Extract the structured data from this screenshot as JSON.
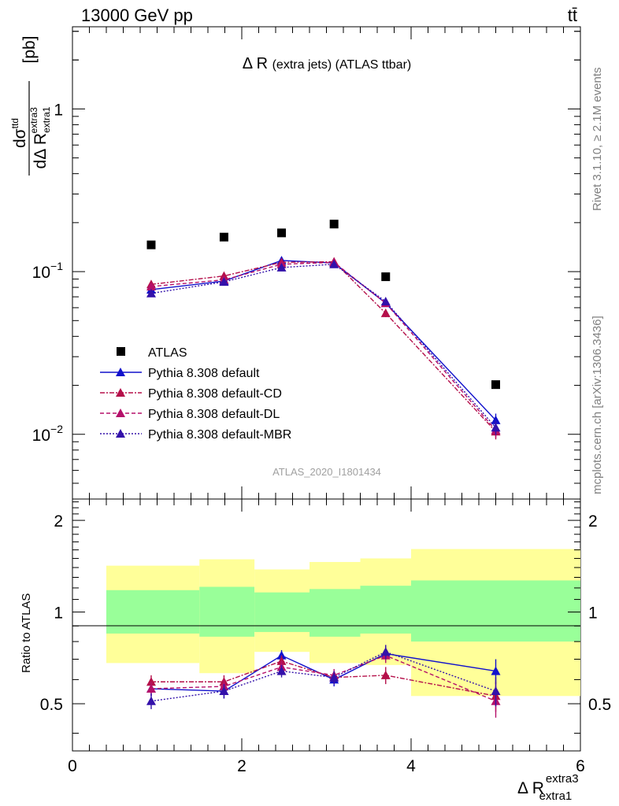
{
  "header": {
    "process": "13000 GeV pp",
    "final_state": "tt̄",
    "inner_title": "Δ R",
    "inner_title_sub": "(extra jets) (ATLAS ttbar)",
    "analysis_id": "ATLAS_2020_I1801434",
    "rivet_label": "Rivet 3.1.10, ≥ 2.1M events",
    "mcplots_label": "mcplots.cern.ch [arXiv:1306.3436]"
  },
  "axes": {
    "main_ylabel_num": "dσ",
    "main_ylabel_num_sup": "ttd",
    "main_ylabel_den": "dΔ R",
    "main_ylabel_den_sub": "extra1",
    "main_ylabel_den_sup": "extra3",
    "main_ylabel_unit": "[pb]",
    "ratio_ylabel": "Ratio to ATLAS",
    "xlabel": "Δ R",
    "xlabel_sup": "extra3",
    "xlabel_sub": "extra1",
    "main_ticks": [
      {
        "value": 1,
        "label": "1",
        "sup": ""
      },
      {
        "value": 0.1,
        "label": "10",
        "sup": "−1"
      },
      {
        "value": 0.01,
        "label": "10",
        "sup": "−2"
      }
    ],
    "ratio_ticks_left": [
      "2",
      "1",
      "0.5"
    ],
    "ratio_ticks_right": [
      "2",
      "1",
      "0.5"
    ],
    "x_ticks": [
      "0",
      "2",
      "4",
      "6"
    ]
  },
  "chart_data": {
    "type": "line",
    "xlim": [
      0,
      6
    ],
    "ylim_main": [
      0.004,
      3.2
    ],
    "yscale_main": "log",
    "ylim_ratio": [
      0.35,
      2.35
    ],
    "yscale_ratio": "log",
    "bins": [
      [
        0.4,
        1.5
      ],
      [
        1.5,
        2.15
      ],
      [
        2.15,
        2.8
      ],
      [
        2.8,
        3.4
      ],
      [
        3.4,
        4.0
      ],
      [
        4.0,
        6.0
      ]
    ],
    "x": [
      0.93,
      1.79,
      2.47,
      3.09,
      3.7,
      5.0
    ],
    "band_inner": [
      [
        0.85,
        1.18
      ],
      [
        0.83,
        1.21
      ],
      [
        0.86,
        1.16
      ],
      [
        0.83,
        1.19
      ],
      [
        0.85,
        1.22
      ],
      [
        0.8,
        1.27
      ]
    ],
    "band_outer": [
      [
        0.68,
        1.42
      ],
      [
        0.63,
        1.49
      ],
      [
        0.74,
        1.38
      ],
      [
        0.68,
        1.46
      ],
      [
        0.67,
        1.5
      ],
      [
        0.53,
        1.61
      ]
    ],
    "legend": [
      {
        "name": "ATLAS",
        "color": "#000000",
        "marker": "square",
        "dash": ""
      },
      {
        "name": "Pythia 8.308 default",
        "color": "#1111cc",
        "marker": "triangle",
        "dash": ""
      },
      {
        "name": "Pythia 8.308 default-CD",
        "color": "#b5104a",
        "marker": "triangle",
        "dash": "6,2,2,2"
      },
      {
        "name": "Pythia 8.308 default-DL",
        "color": "#b5106a",
        "marker": "triangle",
        "dash": "5,3"
      },
      {
        "name": "Pythia 8.308 default-MBR",
        "color": "#3311aa",
        "marker": "triangle",
        "dash": "2,2"
      }
    ],
    "data_values": [
      0.146,
      0.163,
      0.173,
      0.196,
      0.093,
      0.0202
    ],
    "series": [
      {
        "name": "Pythia 8.308 default",
        "values": [
          0.0775,
          0.0875,
          0.117,
          0.113,
          0.064,
          0.0122
        ],
        "errors": [
          0.003,
          0.003,
          0.004,
          0.004,
          0.003,
          0.0012
        ],
        "ratio": [
          0.56,
          0.55,
          0.72,
          0.6,
          0.73,
          0.64
        ],
        "ratio_err": [
          0.03,
          0.03,
          0.03,
          0.03,
          0.04,
          0.06
        ]
      },
      {
        "name": "Pythia 8.308 default-CD",
        "values": [
          0.0835,
          0.094,
          0.114,
          0.115,
          0.0555,
          0.0104
        ],
        "errors": [
          0.003,
          0.003,
          0.004,
          0.004,
          0.003,
          0.0011
        ],
        "ratio": [
          0.59,
          0.59,
          0.69,
          0.61,
          0.62,
          0.53
        ],
        "ratio_err": [
          0.03,
          0.03,
          0.03,
          0.03,
          0.04,
          0.06
        ]
      },
      {
        "name": "Pythia 8.308 default-DL",
        "values": [
          0.081,
          0.089,
          0.111,
          0.114,
          0.064,
          0.0106
        ],
        "errors": [
          0.003,
          0.003,
          0.004,
          0.004,
          0.003,
          0.0011
        ],
        "ratio": [
          0.56,
          0.57,
          0.66,
          0.62,
          0.72,
          0.51
        ],
        "ratio_err": [
          0.03,
          0.03,
          0.03,
          0.03,
          0.04,
          0.06
        ]
      },
      {
        "name": "Pythia 8.308 default-MBR",
        "values": [
          0.0735,
          0.0865,
          0.106,
          0.111,
          0.0655,
          0.011
        ],
        "errors": [
          0.003,
          0.003,
          0.004,
          0.004,
          0.003,
          0.0011
        ],
        "ratio": [
          0.51,
          0.55,
          0.64,
          0.61,
          0.74,
          0.55
        ],
        "ratio_err": [
          0.03,
          0.03,
          0.03,
          0.03,
          0.04,
          0.06
        ]
      }
    ]
  }
}
